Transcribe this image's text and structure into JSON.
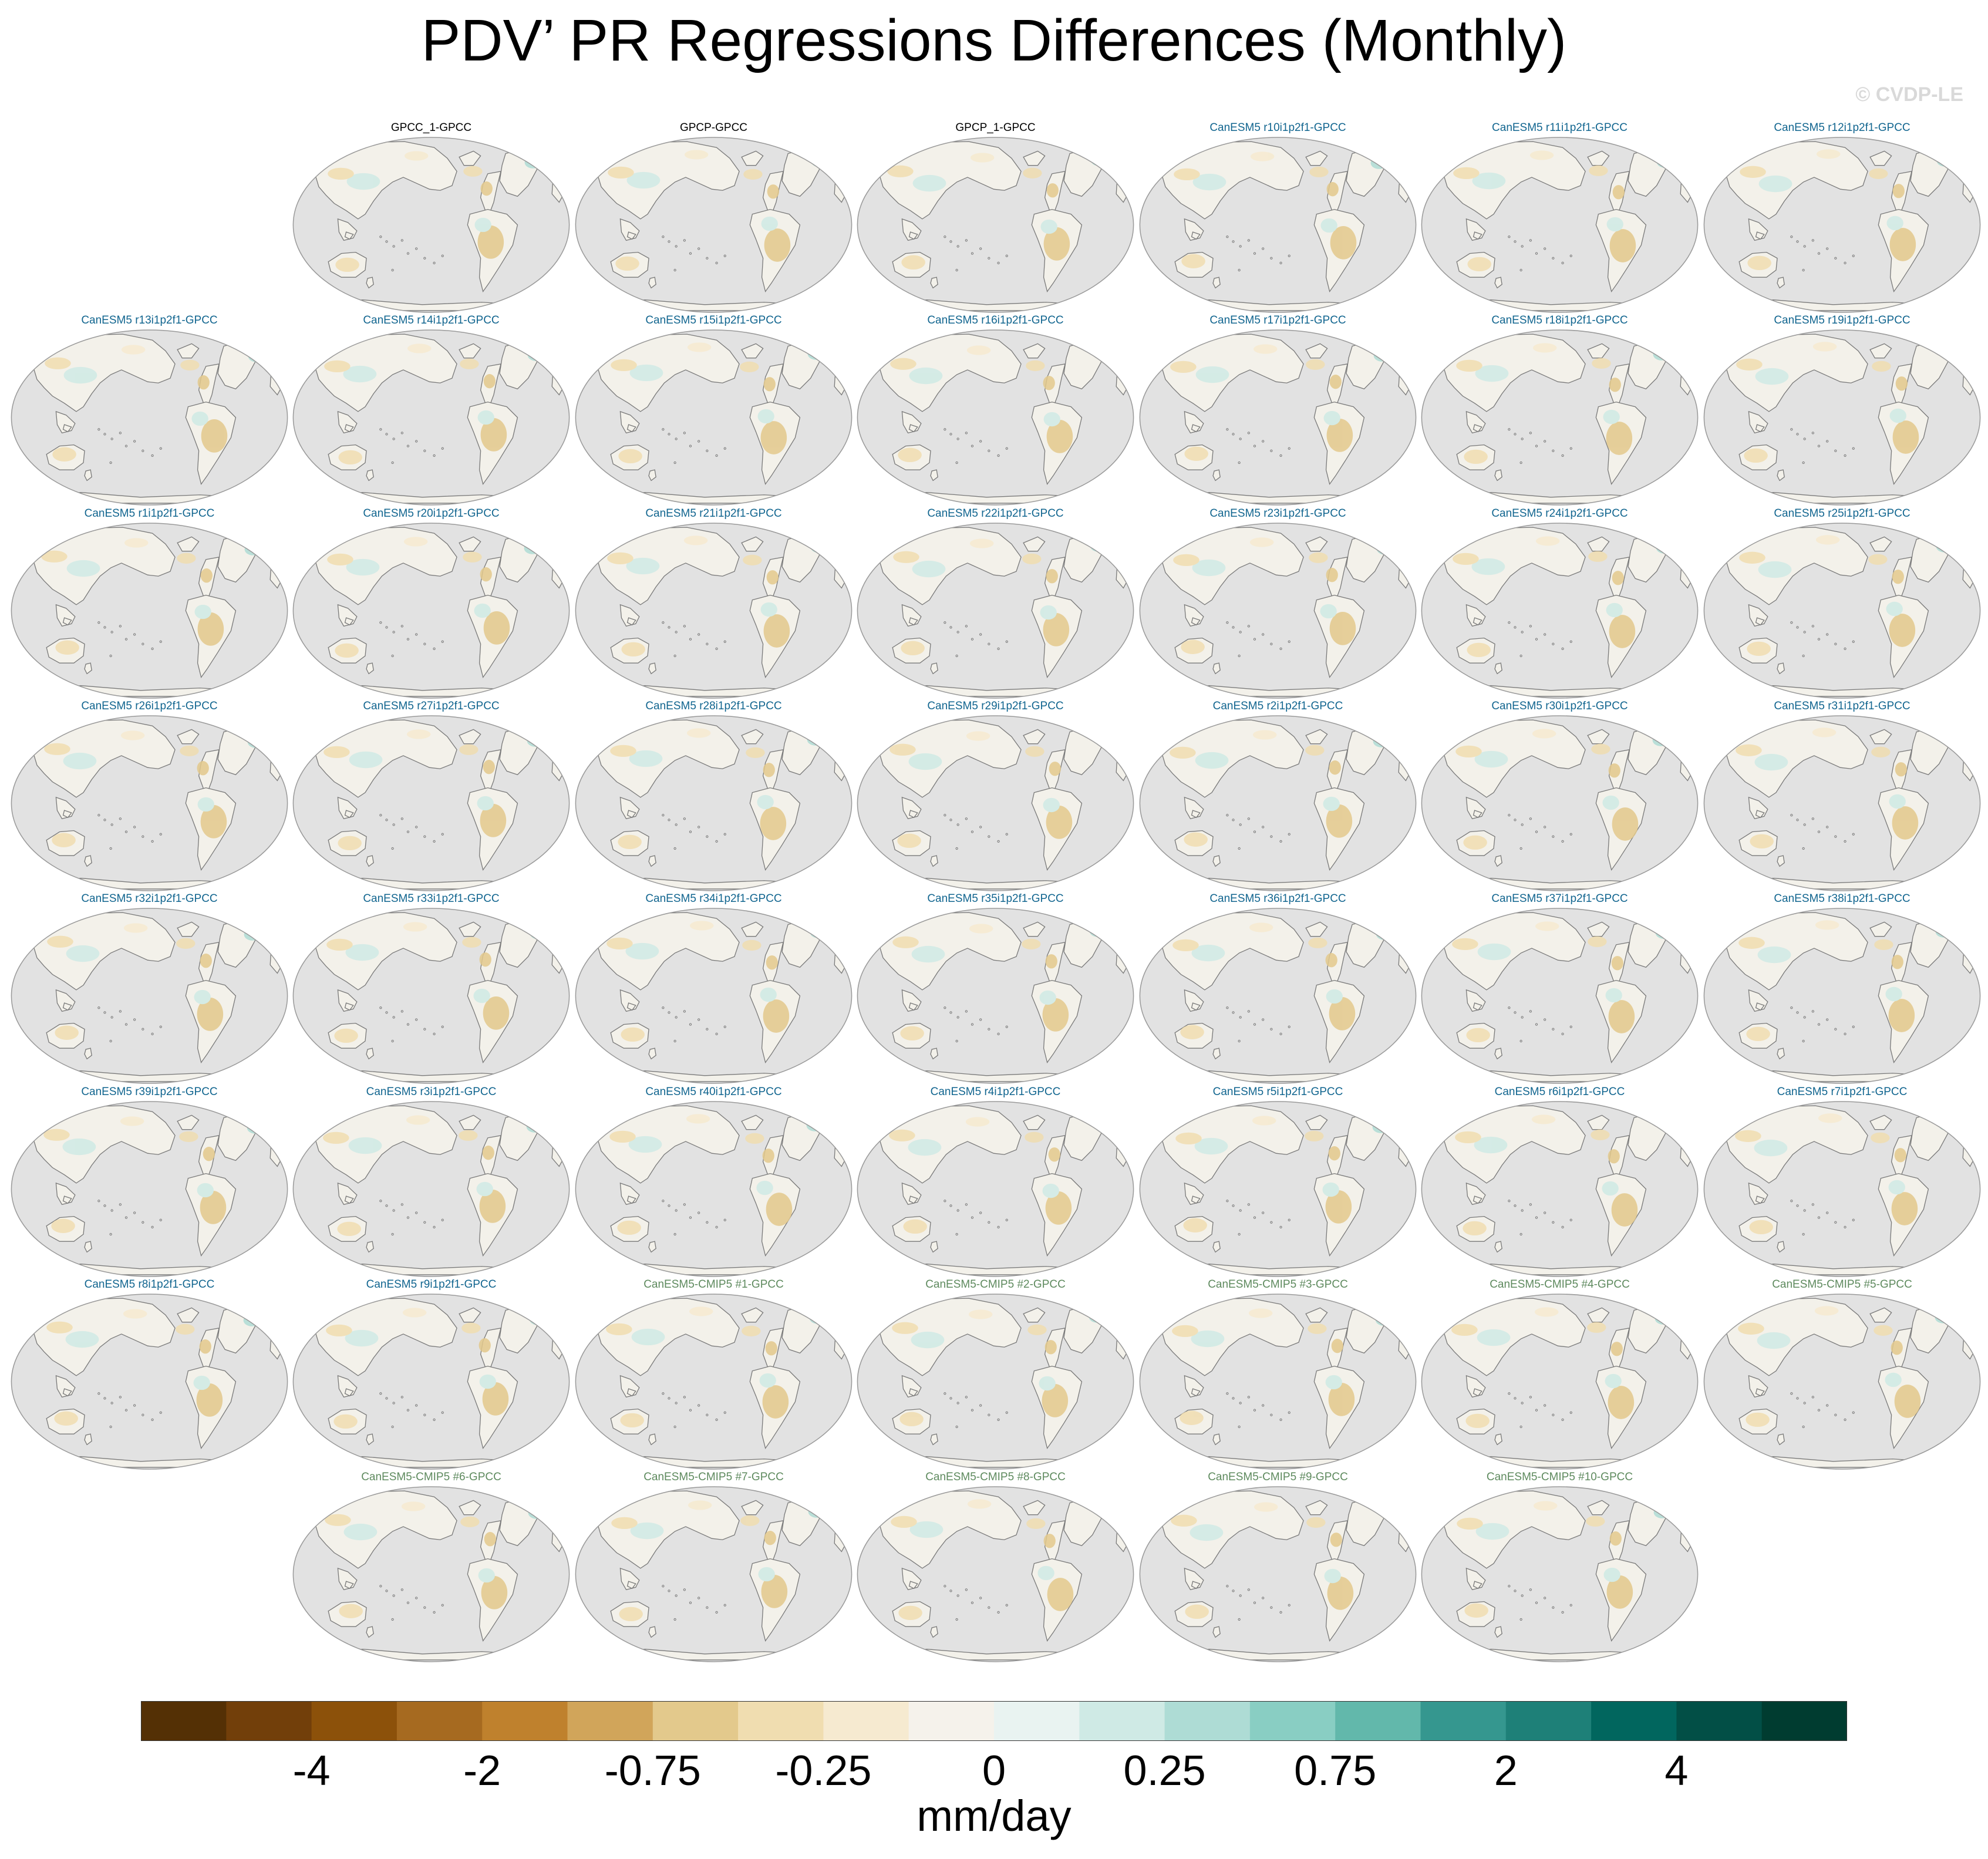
{
  "chart_data": {
    "type": "map-panels",
    "title": "PDV’ PR Regressions Differences (Monthly)",
    "watermark": "© CVDP-LE",
    "units": "mm/day",
    "projection": "Robinson (Pacific-centered)",
    "map_colors": {
      "ocean": "#e2e2e2",
      "land": "#f3f1ea",
      "coast": "#7a7a7a",
      "frame": "#9a9a9a"
    },
    "panels": [
      {
        "title": "GPCC_1-GPCC",
        "group": "obs"
      },
      {
        "title": "GPCP-GPCC",
        "group": "obs"
      },
      {
        "title": "GPCP_1-GPCC",
        "group": "obs"
      },
      {
        "title": "CanESM5 r10i1p2f1-GPCC",
        "group": "le"
      },
      {
        "title": "CanESM5 r11i1p2f1-GPCC",
        "group": "le"
      },
      {
        "title": "CanESM5 r12i1p2f1-GPCC",
        "group": "le"
      },
      {
        "title": "CanESM5 r13i1p2f1-GPCC",
        "group": "le"
      },
      {
        "title": "CanESM5 r14i1p2f1-GPCC",
        "group": "le"
      },
      {
        "title": "CanESM5 r15i1p2f1-GPCC",
        "group": "le"
      },
      {
        "title": "CanESM5 r16i1p2f1-GPCC",
        "group": "le"
      },
      {
        "title": "CanESM5 r17i1p2f1-GPCC",
        "group": "le"
      },
      {
        "title": "CanESM5 r18i1p2f1-GPCC",
        "group": "le"
      },
      {
        "title": "CanESM5 r19i1p2f1-GPCC",
        "group": "le"
      },
      {
        "title": "CanESM5 r1i1p2f1-GPCC",
        "group": "le"
      },
      {
        "title": "CanESM5 r20i1p2f1-GPCC",
        "group": "le"
      },
      {
        "title": "CanESM5 r21i1p2f1-GPCC",
        "group": "le"
      },
      {
        "title": "CanESM5 r22i1p2f1-GPCC",
        "group": "le"
      },
      {
        "title": "CanESM5 r23i1p2f1-GPCC",
        "group": "le"
      },
      {
        "title": "CanESM5 r24i1p2f1-GPCC",
        "group": "le"
      },
      {
        "title": "CanESM5 r25i1p2f1-GPCC",
        "group": "le"
      },
      {
        "title": "CanESM5 r26i1p2f1-GPCC",
        "group": "le"
      },
      {
        "title": "CanESM5 r27i1p2f1-GPCC",
        "group": "le"
      },
      {
        "title": "CanESM5 r28i1p2f1-GPCC",
        "group": "le"
      },
      {
        "title": "CanESM5 r29i1p2f1-GPCC",
        "group": "le"
      },
      {
        "title": "CanESM5 r2i1p2f1-GPCC",
        "group": "le"
      },
      {
        "title": "CanESM5 r30i1p2f1-GPCC",
        "group": "le"
      },
      {
        "title": "CanESM5 r31i1p2f1-GPCC",
        "group": "le"
      },
      {
        "title": "CanESM5 r32i1p2f1-GPCC",
        "group": "le"
      },
      {
        "title": "CanESM5 r33i1p2f1-GPCC",
        "group": "le"
      },
      {
        "title": "CanESM5 r34i1p2f1-GPCC",
        "group": "le"
      },
      {
        "title": "CanESM5 r35i1p2f1-GPCC",
        "group": "le"
      },
      {
        "title": "CanESM5 r36i1p2f1-GPCC",
        "group": "le"
      },
      {
        "title": "CanESM5 r37i1p2f1-GPCC",
        "group": "le"
      },
      {
        "title": "CanESM5 r38i1p2f1-GPCC",
        "group": "le"
      },
      {
        "title": "CanESM5 r39i1p2f1-GPCC",
        "group": "le"
      },
      {
        "title": "CanESM5 r3i1p2f1-GPCC",
        "group": "le"
      },
      {
        "title": "CanESM5 r40i1p2f1-GPCC",
        "group": "le"
      },
      {
        "title": "CanESM5 r4i1p2f1-GPCC",
        "group": "le"
      },
      {
        "title": "CanESM5 r5i1p2f1-GPCC",
        "group": "le"
      },
      {
        "title": "CanESM5 r6i1p2f1-GPCC",
        "group": "le"
      },
      {
        "title": "CanESM5 r7i1p2f1-GPCC",
        "group": "le"
      },
      {
        "title": "CanESM5 r8i1p2f1-GPCC",
        "group": "le"
      },
      {
        "title": "CanESM5 r9i1p2f1-GPCC",
        "group": "le"
      },
      {
        "title": "CanESM5-CMIP5 #1-GPCC",
        "group": "cmip"
      },
      {
        "title": "CanESM5-CMIP5 #2-GPCC",
        "group": "cmip"
      },
      {
        "title": "CanESM5-CMIP5 #3-GPCC",
        "group": "cmip"
      },
      {
        "title": "CanESM5-CMIP5 #4-GPCC",
        "group": "cmip"
      },
      {
        "title": "CanESM5-CMIP5 #5-GPCC",
        "group": "cmip"
      },
      {
        "title": "CanESM5-CMIP5 #6-GPCC",
        "group": "cmip"
      },
      {
        "title": "CanESM5-CMIP5 #7-GPCC",
        "group": "cmip"
      },
      {
        "title": "CanESM5-CMIP5 #8-GPCC",
        "group": "cmip"
      },
      {
        "title": "CanESM5-CMIP5 #9-GPCC",
        "group": "cmip"
      },
      {
        "title": "CanESM5-CMIP5 #10-GPCC",
        "group": "cmip"
      }
    ],
    "colorbar": {
      "colors": [
        "#543005",
        "#723f0a",
        "#8c510a",
        "#a66a20",
        "#bf812d",
        "#d1a55a",
        "#e3c98c",
        "#f0ddb0",
        "#f6ead0",
        "#f5f2eb",
        "#e9f3f1",
        "#cfeae5",
        "#aedcd5",
        "#89cec3",
        "#62b8ab",
        "#35978f",
        "#1e8078",
        "#01665e",
        "#024f46",
        "#003c30"
      ],
      "tick_labels": [
        "-4",
        "-2",
        "-0.75",
        "-0.25",
        "0",
        "0.25",
        "0.75",
        "2",
        "4"
      ]
    }
  }
}
